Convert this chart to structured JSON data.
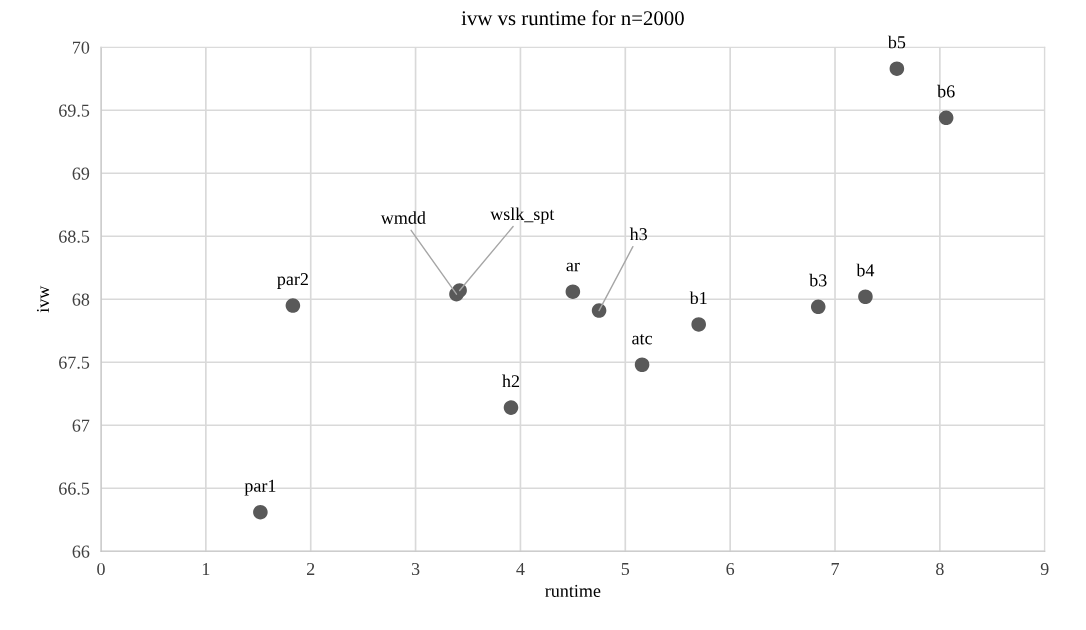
{
  "chart_data": {
    "type": "scatter",
    "title": "ivw vs runtime for n=2000",
    "xlabel": "runtime",
    "ylabel": "ivw",
    "xlim": [
      0,
      9
    ],
    "xticks": [
      0,
      1,
      2,
      3,
      4,
      5,
      6,
      7,
      8,
      9
    ],
    "ylim": [
      66,
      70
    ],
    "yticks": [
      66,
      66.5,
      67,
      67.5,
      68,
      68.5,
      69,
      69.5,
      70
    ],
    "grid": true,
    "marker": "circle",
    "legend": false,
    "series": [
      {
        "color": "#595959",
        "x": [
          1.52,
          1.83,
          3.39,
          3.42,
          3.91,
          4.5,
          4.75,
          5.16,
          5.7,
          6.84,
          7.29,
          7.59,
          8.06
        ],
        "values": [
          66.31,
          67.95,
          68.04,
          68.07,
          67.14,
          68.06,
          67.91,
          67.48,
          67.8,
          67.94,
          68.02,
          69.83,
          69.44
        ]
      }
    ],
    "annotations": [
      {
        "text": "par1",
        "x": 1.52,
        "y": 66.31
      },
      {
        "text": "par2",
        "x": 1.83,
        "y": 67.95
      },
      {
        "text": "wmdd",
        "x": 3.39,
        "y": 68.04
      },
      {
        "text": "wslk_spt",
        "x": 3.42,
        "y": 68.07
      },
      {
        "text": "h2",
        "x": 3.91,
        "y": 67.14
      },
      {
        "text": "ar",
        "x": 4.5,
        "y": 68.06
      },
      {
        "text": "h3",
        "x": 4.75,
        "y": 67.91
      },
      {
        "text": "atc",
        "x": 5.16,
        "y": 67.48
      },
      {
        "text": "b1",
        "x": 5.7,
        "y": 67.8
      },
      {
        "text": "b3",
        "x": 6.84,
        "y": 67.94
      },
      {
        "text": "b4",
        "x": 7.29,
        "y": 68.02
      },
      {
        "text": "b5",
        "x": 7.59,
        "y": 69.83
      },
      {
        "text": "b6",
        "x": 8.06,
        "y": 69.44
      }
    ]
  }
}
